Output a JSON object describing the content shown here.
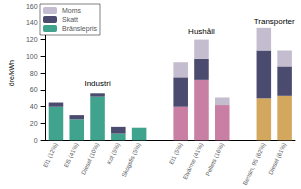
{
  "chart_data": {
    "type": "bar",
    "stacked": true,
    "y_label": "öre/kWh",
    "categories": [
      "El1 (12%)",
      "El5 (41%)",
      "Diesel (10%)",
      "Kol (5%)",
      "Skogsfis (5%)",
      null,
      "El1 (5%)",
      "Elvärme (41%)",
      "Pellets (16%)",
      null,
      "Bensin, 95 (62%)",
      "Diesel (61%)"
    ],
    "series": [
      {
        "name": "Bränslepris",
        "colors": [
          "#3fa38e",
          "#3fa38e",
          "#3fa38e",
          "#3fa38e",
          "#3fa38e",
          null,
          "#c97ea4",
          "#c97ea4",
          "#c97ea4",
          null,
          "#d4a75e",
          "#d4a75e"
        ],
        "values": [
          40,
          25,
          52,
          8,
          15,
          null,
          40,
          72,
          42,
          null,
          50,
          53
        ]
      },
      {
        "name": "Skatt",
        "color": "#4b4b6f",
        "values": [
          5,
          5,
          4,
          8,
          null,
          null,
          35,
          25,
          null,
          null,
          57,
          35
        ]
      },
      {
        "name": "Moms",
        "color": "#c4bccf",
        "values": [
          null,
          null,
          null,
          null,
          null,
          null,
          18,
          23,
          9,
          null,
          27,
          19
        ]
      }
    ],
    "legend": "top-left",
    "annotations": [
      {
        "text": "Industri",
        "x": 2,
        "y": 68
      },
      {
        "text": "Hushåll",
        "x": 7,
        "y": 130
      },
      {
        "text": "Transporter",
        "x": 10.5,
        "y": 142
      }
    ],
    "ylim": [
      0,
      160
    ],
    "yticks": [
      0,
      20,
      40,
      60,
      80,
      100,
      120,
      140,
      160
    ],
    "grid": false
  }
}
